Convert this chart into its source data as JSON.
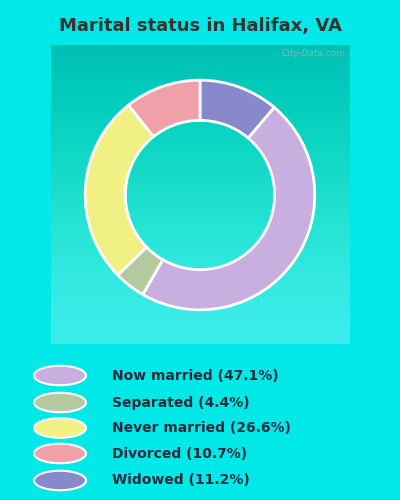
{
  "title": "Marital status in Halifax, VA",
  "slices": [
    47.1,
    4.4,
    26.6,
    10.7,
    11.2
  ],
  "labels": [
    "Now married (47.1%)",
    "Separated (4.4%)",
    "Never married (26.6%)",
    "Divorced (10.7%)",
    "Widowed (11.2%)"
  ],
  "colors": [
    "#c9aee0",
    "#b5c9a0",
    "#f0f084",
    "#f0a0a8",
    "#8888cc"
  ],
  "bg_cyan": "#00e8e8",
  "chart_bg": "#d6edd8",
  "title_color": "#333333",
  "title_fontsize": 13,
  "watermark": "City-Data.com",
  "donut_width": 0.35,
  "wedge_order": [
    4,
    0,
    1,
    2,
    3
  ],
  "legend_text_color": "#2a2a3a",
  "legend_fontsize": 10
}
